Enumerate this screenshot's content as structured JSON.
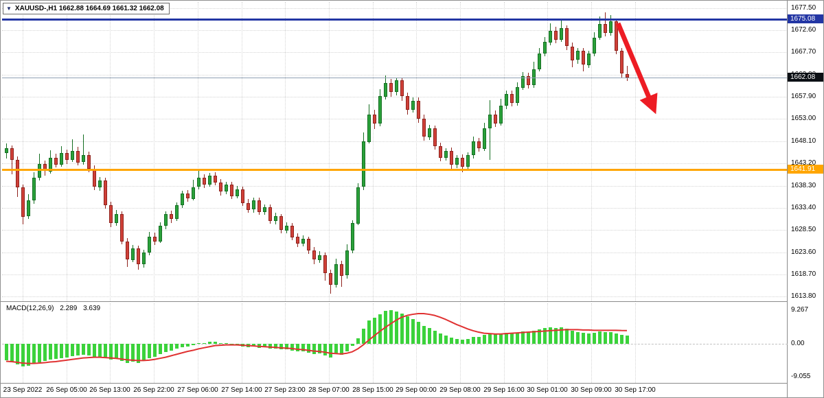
{
  "window": {
    "dropdown_icon": "▼",
    "title": "XAUUSD-,H1  1662.88 1664.69 1661.32 1662.08"
  },
  "indicator": {
    "name": "MACD(12,26,9)",
    "macd": "2.289",
    "signal": "3.639"
  },
  "price_axis": {
    "ticks": [
      "1677.50",
      "1672.60",
      "1667.70",
      "1662.80",
      "1657.90",
      "1653.00",
      "1648.10",
      "1643.20",
      "1638.30",
      "1633.40",
      "1628.50",
      "1623.60",
      "1618.70",
      "1613.80"
    ],
    "resistance_label": "1675.08",
    "current_label": "1662.08",
    "support_label": "1641.91"
  },
  "macd_axis": {
    "ticks": [
      "9.267",
      "0.00",
      "-9.055"
    ]
  },
  "colors": {
    "bull_fill": "#2aa03a",
    "bull_border": "#156f22",
    "bear_fill": "#cf4038",
    "bear_border": "#8f221c",
    "macd_hist": "#3bd23b",
    "macd_signal": "#e03131",
    "resistance_line": "#2336a4",
    "support_line": "#ffa500",
    "current_box": "#0b0f14",
    "arrow": "#ed1c24",
    "grid": "#d4d4d4"
  },
  "chart_data": {
    "main": {
      "type": "candlestick",
      "symbol": "XAUUSD-",
      "timeframe": "H1",
      "current_ohlc": {
        "open": 1662.88,
        "high": 1664.69,
        "low": 1661.32,
        "close": 1662.08
      },
      "ylim": [
        1612.8,
        1678.8
      ],
      "price_tick_step": 4.9,
      "levels": {
        "resistance": 1675.08,
        "current": 1662.08,
        "support": 1641.91
      },
      "candles": [
        [
          1645.5,
          1647.6,
          1644.2,
          1646.5
        ],
        [
          1646.5,
          1647.2,
          1640.8,
          1644.0
        ],
        [
          1644.0,
          1644.8,
          1635.9,
          1638.0
        ],
        [
          1638.0,
          1638.6,
          1629.8,
          1631.5
        ],
        [
          1631.5,
          1636.4,
          1630.9,
          1635.0
        ],
        [
          1635.0,
          1641.2,
          1634.3,
          1640.0
        ],
        [
          1640.0,
          1645.4,
          1639.5,
          1643.0
        ],
        [
          1643.0,
          1643.9,
          1640.6,
          1641.5
        ],
        [
          1641.5,
          1646.1,
          1641.0,
          1644.5
        ],
        [
          1644.5,
          1645.3,
          1642.2,
          1643.0
        ],
        [
          1643.0,
          1647.0,
          1642.5,
          1645.5
        ],
        [
          1645.5,
          1646.3,
          1643.1,
          1644.0
        ],
        [
          1644.0,
          1648.6,
          1643.6,
          1646.0
        ],
        [
          1646.0,
          1646.9,
          1642.8,
          1643.5
        ],
        [
          1643.5,
          1649.6,
          1643.0,
          1645.0
        ],
        [
          1645.0,
          1645.8,
          1641.2,
          1642.0
        ],
        [
          1642.0,
          1642.7,
          1637.3,
          1638.0
        ],
        [
          1638.0,
          1640.2,
          1637.2,
          1639.5
        ],
        [
          1639.5,
          1640.1,
          1633.3,
          1634.0
        ],
        [
          1634.0,
          1634.8,
          1629.2,
          1630.0
        ],
        [
          1630.0,
          1632.9,
          1629.4,
          1632.0
        ],
        [
          1632.0,
          1632.6,
          1625.3,
          1626.0
        ],
        [
          1626.0,
          1626.8,
          1620.5,
          1622.0
        ],
        [
          1622.0,
          1625.2,
          1621.4,
          1624.5
        ],
        [
          1624.5,
          1625.1,
          1619.8,
          1621.0
        ],
        [
          1621.0,
          1624.2,
          1620.3,
          1623.5
        ],
        [
          1623.5,
          1628.1,
          1623.0,
          1627.0
        ],
        [
          1627.0,
          1627.9,
          1625.2,
          1626.0
        ],
        [
          1626.0,
          1630.2,
          1625.6,
          1629.5
        ],
        [
          1629.5,
          1632.7,
          1628.8,
          1632.0
        ],
        [
          1632.0,
          1632.8,
          1630.1,
          1631.0
        ],
        [
          1631.0,
          1634.6,
          1630.5,
          1634.0
        ],
        [
          1634.0,
          1637.2,
          1633.4,
          1636.5
        ],
        [
          1636.5,
          1637.3,
          1634.7,
          1635.5
        ],
        [
          1635.5,
          1639.6,
          1635.0,
          1638.0
        ],
        [
          1638.0,
          1641.5,
          1637.4,
          1640.0
        ],
        [
          1640.0,
          1640.8,
          1637.8,
          1638.5
        ],
        [
          1638.5,
          1641.1,
          1638.0,
          1640.5
        ],
        [
          1640.5,
          1641.2,
          1638.3,
          1639.0
        ],
        [
          1639.0,
          1639.8,
          1636.2,
          1637.0
        ],
        [
          1637.0,
          1639.2,
          1636.4,
          1638.5
        ],
        [
          1638.5,
          1639.1,
          1635.3,
          1636.0
        ],
        [
          1636.0,
          1638.2,
          1635.4,
          1637.5
        ],
        [
          1637.5,
          1638.1,
          1633.8,
          1634.5
        ],
        [
          1634.5,
          1635.3,
          1632.2,
          1633.0
        ],
        [
          1633.0,
          1635.7,
          1632.4,
          1635.0
        ],
        [
          1635.0,
          1635.6,
          1631.8,
          1632.5
        ],
        [
          1632.5,
          1634.2,
          1631.9,
          1633.5
        ],
        [
          1633.5,
          1634.1,
          1629.9,
          1630.5
        ],
        [
          1630.5,
          1632.3,
          1629.8,
          1631.5
        ],
        [
          1631.5,
          1632.1,
          1627.9,
          1628.5
        ],
        [
          1628.5,
          1630.2,
          1627.8,
          1629.5
        ],
        [
          1629.5,
          1630.1,
          1626.3,
          1627.0
        ],
        [
          1627.0,
          1627.8,
          1624.8,
          1625.5
        ],
        [
          1625.5,
          1627.3,
          1624.9,
          1626.5
        ],
        [
          1626.5,
          1627.1,
          1623.3,
          1624.0
        ],
        [
          1624.0,
          1624.7,
          1620.9,
          1622.0
        ],
        [
          1622.0,
          1623.8,
          1621.3,
          1623.0
        ],
        [
          1623.0,
          1623.6,
          1617.4,
          1619.0
        ],
        [
          1619.0,
          1619.7,
          1614.4,
          1616.5
        ],
        [
          1616.5,
          1622.2,
          1615.9,
          1621.0
        ],
        [
          1621.0,
          1621.7,
          1615.9,
          1618.5
        ],
        [
          1618.5,
          1625.3,
          1617.8,
          1624.0
        ],
        [
          1624.0,
          1630.6,
          1623.4,
          1630.0
        ],
        [
          1630.0,
          1638.8,
          1629.5,
          1638.0
        ],
        [
          1638.0,
          1650.1,
          1637.4,
          1648.0
        ],
        [
          1648.0,
          1656.2,
          1647.5,
          1654.0
        ],
        [
          1654.0,
          1655.0,
          1650.8,
          1652.0
        ],
        [
          1652.0,
          1659.6,
          1651.4,
          1658.0
        ],
        [
          1658.0,
          1662.6,
          1657.3,
          1661.0
        ],
        [
          1661.0,
          1661.8,
          1657.9,
          1659.0
        ],
        [
          1659.0,
          1662.2,
          1658.3,
          1661.5
        ],
        [
          1661.5,
          1662.1,
          1656.9,
          1658.0
        ],
        [
          1658.0,
          1658.8,
          1653.9,
          1655.0
        ],
        [
          1655.0,
          1657.7,
          1654.3,
          1657.0
        ],
        [
          1657.0,
          1657.8,
          1652.2,
          1653.0
        ],
        [
          1653.0,
          1653.9,
          1648.2,
          1649.0
        ],
        [
          1649.0,
          1651.7,
          1648.3,
          1651.0
        ],
        [
          1651.0,
          1651.6,
          1646.3,
          1647.0
        ],
        [
          1647.0,
          1647.8,
          1643.7,
          1644.5
        ],
        [
          1644.5,
          1646.6,
          1643.8,
          1646.0
        ],
        [
          1646.0,
          1646.7,
          1641.6,
          1643.0
        ],
        [
          1643.0,
          1645.1,
          1642.2,
          1644.5
        ],
        [
          1644.5,
          1645.2,
          1641.2,
          1642.5
        ],
        [
          1642.5,
          1645.7,
          1641.9,
          1645.0
        ],
        [
          1645.0,
          1649.2,
          1644.4,
          1648.0
        ],
        [
          1648.0,
          1648.8,
          1645.8,
          1646.5
        ],
        [
          1646.5,
          1652.1,
          1645.9,
          1651.0
        ],
        [
          1651.0,
          1657.2,
          1644.1,
          1654.0
        ],
        [
          1654.0,
          1654.9,
          1651.3,
          1652.0
        ],
        [
          1652.0,
          1657.4,
          1651.5,
          1656.0
        ],
        [
          1656.0,
          1659.3,
          1655.2,
          1658.5
        ],
        [
          1658.5,
          1659.2,
          1655.7,
          1656.5
        ],
        [
          1656.5,
          1661.1,
          1655.9,
          1660.0
        ],
        [
          1660.0,
          1663.3,
          1659.4,
          1662.5
        ],
        [
          1662.5,
          1663.2,
          1659.7,
          1660.5
        ],
        [
          1660.5,
          1665.6,
          1659.9,
          1664.0
        ],
        [
          1664.0,
          1668.6,
          1663.4,
          1667.5
        ],
        [
          1667.5,
          1671.1,
          1666.8,
          1670.0
        ],
        [
          1670.0,
          1674.1,
          1669.3,
          1672.5
        ],
        [
          1672.5,
          1673.3,
          1669.7,
          1670.5
        ],
        [
          1670.5,
          1674.8,
          1669.9,
          1673.0
        ],
        [
          1673.0,
          1673.7,
          1668.2,
          1669.0
        ],
        [
          1669.0,
          1669.8,
          1664.4,
          1666.0
        ],
        [
          1666.0,
          1668.7,
          1665.2,
          1668.0
        ],
        [
          1668.0,
          1668.6,
          1663.4,
          1665.0
        ],
        [
          1665.0,
          1668.1,
          1664.3,
          1667.5
        ],
        [
          1667.5,
          1672.2,
          1666.9,
          1671.0
        ],
        [
          1671.0,
          1675.6,
          1670.4,
          1674.0
        ],
        [
          1674.0,
          1676.6,
          1671.3,
          1672.0
        ],
        [
          1672.0,
          1675.9,
          1671.4,
          1674.5
        ],
        [
          1674.5,
          1675.1,
          1667.2,
          1668.0
        ],
        [
          1668.0,
          1668.7,
          1662.1,
          1663.0
        ],
        [
          1662.88,
          1664.69,
          1661.32,
          1662.08
        ]
      ]
    },
    "macd": {
      "type": "bar",
      "name": "MACD(12,26,9)",
      "macd_value": 2.289,
      "signal_value": 3.639,
      "ylim": [
        -9.055,
        9.267
      ],
      "histogram": [
        -4.5,
        -5.0,
        -5.6,
        -6.2,
        -6.0,
        -5.5,
        -5.0,
        -4.8,
        -4.4,
        -4.2,
        -3.9,
        -3.7,
        -3.4,
        -3.3,
        -3.0,
        -3.2,
        -3.6,
        -3.5,
        -3.9,
        -4.4,
        -4.2,
        -4.8,
        -5.3,
        -4.9,
        -5.2,
        -4.7,
        -4.0,
        -3.6,
        -2.9,
        -2.2,
        -1.9,
        -1.4,
        -0.9,
        -0.8,
        -0.4,
        0.1,
        0.2,
        0.5,
        0.5,
        0.2,
        0.1,
        -0.2,
        -0.3,
        -0.7,
        -0.9,
        -0.8,
        -1.1,
        -1.0,
        -1.4,
        -1.3,
        -1.6,
        -1.5,
        -1.9,
        -2.1,
        -2.0,
        -2.4,
        -2.8,
        -2.6,
        -3.2,
        -3.7,
        -2.9,
        -3.1,
        -2.0,
        -0.6,
        1.6,
        4.2,
        6.4,
        7.2,
        8.2,
        9.0,
        9.267,
        8.9,
        8.3,
        7.5,
        6.8,
        6.0,
        5.0,
        4.4,
        3.6,
        2.8,
        2.3,
        1.7,
        1.4,
        1.2,
        1.4,
        1.8,
        1.9,
        2.4,
        2.9,
        2.7,
        2.9,
        3.1,
        2.9,
        3.1,
        3.4,
        3.2,
        3.5,
        3.9,
        4.3,
        4.6,
        4.4,
        4.5,
        4.1,
        3.6,
        3.3,
        3.0,
        2.9,
        3.1,
        3.4,
        3.3,
        3.2,
        2.8,
        2.4,
        2.289
      ],
      "signal": [
        -4.8,
        -4.9,
        -5.1,
        -5.3,
        -5.4,
        -5.4,
        -5.3,
        -5.2,
        -5.0,
        -4.9,
        -4.7,
        -4.5,
        -4.3,
        -4.1,
        -3.9,
        -3.8,
        -3.7,
        -3.7,
        -3.8,
        -3.9,
        -4.0,
        -4.2,
        -4.4,
        -4.5,
        -4.6,
        -4.6,
        -4.5,
        -4.3,
        -4.0,
        -3.7,
        -3.3,
        -2.9,
        -2.5,
        -2.1,
        -1.8,
        -1.4,
        -1.1,
        -0.8,
        -0.5,
        -0.4,
        -0.3,
        -0.3,
        -0.3,
        -0.4,
        -0.5,
        -0.6,
        -0.7,
        -0.8,
        -0.9,
        -1.0,
        -1.1,
        -1.2,
        -1.3,
        -1.5,
        -1.6,
        -1.8,
        -2.0,
        -2.1,
        -2.3,
        -2.6,
        -2.7,
        -2.8,
        -2.6,
        -2.2,
        -1.4,
        -0.3,
        1.0,
        2.2,
        3.4,
        4.5,
        5.5,
        6.5,
        7.3,
        7.8,
        8.1,
        8.3,
        8.3,
        8.1,
        7.8,
        7.3,
        6.7,
        6.0,
        5.3,
        4.7,
        4.1,
        3.6,
        3.2,
        2.9,
        2.8,
        2.7,
        2.7,
        2.8,
        2.9,
        3.0,
        3.1,
        3.2,
        3.3,
        3.4,
        3.5,
        3.6,
        3.7,
        3.8,
        3.9,
        3.9,
        3.9,
        3.8,
        3.8,
        3.7,
        3.7,
        3.7,
        3.7,
        3.7,
        3.65,
        3.639
      ]
    },
    "time_labels": [
      "23 Sep 2022",
      "26 Sep 05:00",
      "26 Sep 13:00",
      "26 Sep 22:00",
      "27 Sep 06:00",
      "27 Sep 14:00",
      "27 Sep 23:00",
      "28 Sep 07:00",
      "28 Sep 15:00",
      "29 Sep 00:00",
      "29 Sep 08:00",
      "29 Sep 16:00",
      "30 Sep 01:00",
      "30 Sep 09:00",
      "30 Sep 17:00"
    ],
    "annotations": [
      {
        "type": "arrow",
        "color": "#ed1c24",
        "direction": "down-right",
        "meaning": "projected price decline"
      }
    ]
  }
}
